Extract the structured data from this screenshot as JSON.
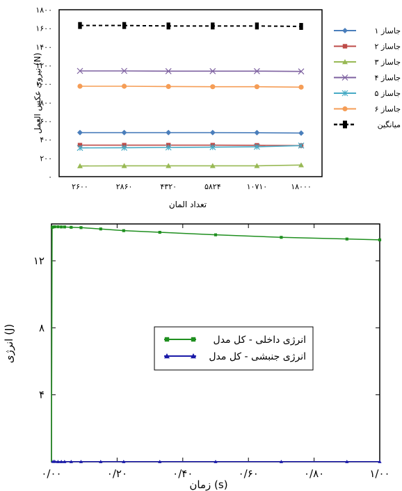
{
  "chart_data": [
    {
      "type": "line",
      "xlabel": "تعداد المان",
      "ylabel": "نیروی عکس العمل (N)",
      "categories": [
        "۲۶۰۰",
        "۲۸۶۰",
        "۴۳۲۰",
        "۵۸۲۴",
        "۱۰۷۱۰",
        "۱۸۰۰۰"
      ],
      "yticks": [
        "۰",
        "۲۰۰",
        "۴۰۰",
        "۶۰۰",
        "۸۰۰",
        "۱۰۰۰",
        "۱۲۰۰",
        "۱۴۰۰",
        "۱۶۰۰",
        "۱۸۰۰"
      ],
      "ylim": [
        0,
        1800
      ],
      "legend_position": "right",
      "series": [
        {
          "name": "جاساز ۱",
          "marker": "diamond",
          "color": "#4a7ebb",
          "values": [
            475,
            475,
            475,
            475,
            474,
            470
          ]
        },
        {
          "name": "جاساز ۲",
          "marker": "square",
          "color": "#be4b48",
          "values": [
            340,
            340,
            340,
            340,
            338,
            335
          ]
        },
        {
          "name": "جاساز ۳",
          "marker": "triangle",
          "color": "#98b954",
          "values": [
            115,
            117,
            117,
            117,
            117,
            125
          ]
        },
        {
          "name": "جاساز ۴",
          "marker": "x",
          "color": "#7d60a0",
          "values": [
            1140,
            1140,
            1138,
            1138,
            1138,
            1135
          ]
        },
        {
          "name": "جاساز ۵",
          "marker": "star",
          "color": "#46aac5",
          "values": [
            310,
            312,
            315,
            318,
            322,
            335
          ]
        },
        {
          "name": "جاساز ۶",
          "marker": "circle",
          "color": "#f59d56",
          "values": [
            975,
            975,
            972,
            970,
            970,
            965
          ]
        },
        {
          "name": "میانگین",
          "marker": "bar",
          "color": "#000000",
          "dashed": true,
          "values": [
            1630,
            1630,
            1625,
            1625,
            1625,
            1620
          ]
        }
      ]
    },
    {
      "type": "line",
      "xlabel": "زمان (s)",
      "ylabel": "انرژی (J)",
      "xticks": [
        "۰/۰۰",
        "۰/۲۰",
        "۰/۴۰",
        "۰/۶۰",
        "۰/۸۰",
        "۱/۰۰"
      ],
      "yticks": [
        "۴",
        "۸",
        "۱۲"
      ],
      "xlim": [
        0,
        1
      ],
      "ylim": [
        0,
        14.2
      ],
      "legend_position": "center",
      "series": [
        {
          "name": "انرژی داخلی - کل مدل",
          "marker": "square",
          "color": "#1f8f1f",
          "x": [
            0,
            0.002,
            0.005,
            0.01,
            0.02,
            0.03,
            0.04,
            0.06,
            0.09,
            0.15,
            0.22,
            0.33,
            0.5,
            0.7,
            0.9,
            1.0
          ],
          "y": [
            0,
            14.0,
            14.02,
            14.03,
            14.03,
            14.02,
            14.02,
            14.0,
            13.98,
            13.9,
            13.8,
            13.7,
            13.55,
            13.4,
            13.3,
            13.25
          ]
        },
        {
          "name": "انرژی جنبشی - کل مدل",
          "marker": "triangle",
          "color": "#1a1aa8",
          "x": [
            0,
            0.005,
            0.01,
            0.02,
            0.03,
            0.04,
            0.06,
            0.09,
            0.15,
            0.22,
            0.33,
            0.5,
            0.7,
            0.9,
            1.0
          ],
          "y": [
            0,
            0.02,
            0.02,
            0.01,
            0.01,
            0.01,
            0.01,
            0.01,
            0.01,
            0.01,
            0.01,
            0.01,
            0.01,
            0.01,
            0.01
          ]
        }
      ]
    }
  ]
}
